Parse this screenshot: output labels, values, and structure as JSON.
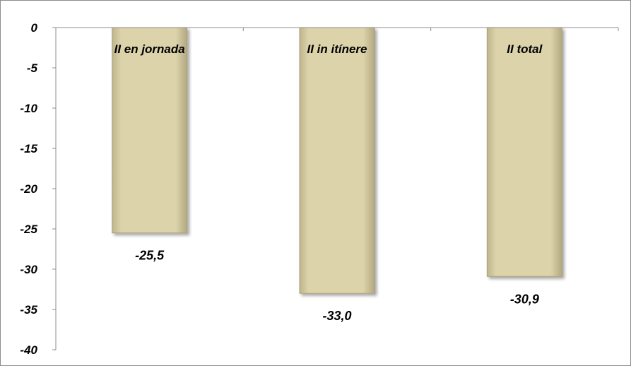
{
  "chart_data": {
    "type": "bar",
    "title": "",
    "xlabel": "",
    "ylabel": "",
    "categories": [
      "II en jornada",
      "II in itínere",
      "II total"
    ],
    "values": [
      -25.5,
      -33.0,
      -30.9
    ],
    "value_labels": [
      "-25,5",
      "-33,0",
      "-30,9"
    ],
    "ylim": [
      -40,
      0
    ],
    "y_ticks": [
      0,
      -5,
      -10,
      -15,
      -20,
      -25,
      -30,
      -35,
      -40
    ],
    "y_tick_labels": [
      "0",
      "-5",
      "-10",
      "-15",
      "-20",
      "-25",
      "-30",
      "-35",
      "-40"
    ],
    "grid": false,
    "legend": "none",
    "colors": {
      "bar_fill": "#ddd3ab",
      "bar_edge": "#a8a07a",
      "axis": "#8c8c8c"
    }
  }
}
